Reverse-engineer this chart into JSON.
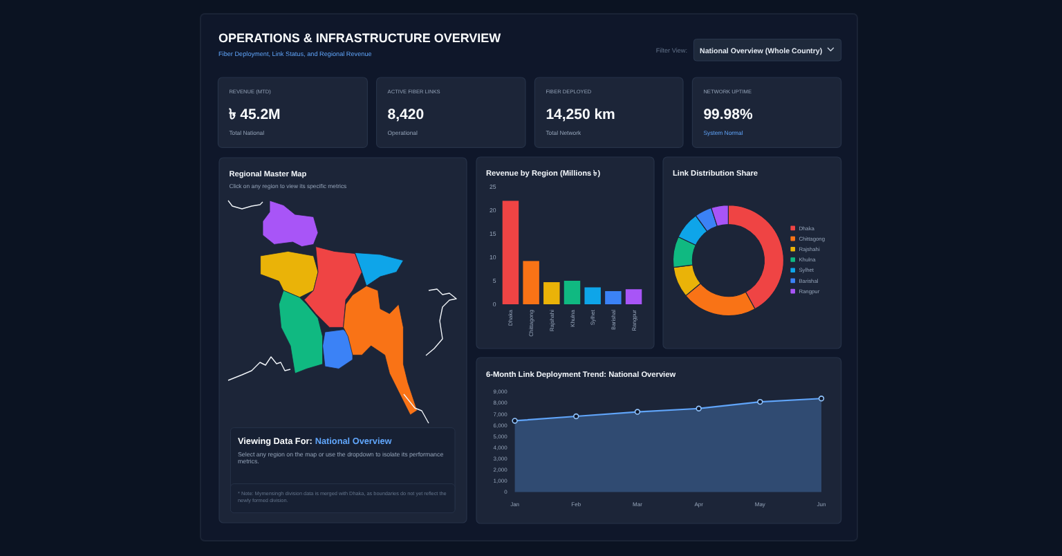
{
  "chart_data": [
    {
      "type": "other",
      "title": "OPERATIONS & INFRASTRUCTURE OVERVIEW",
      "subtitle": "Fiber Deployment, Link Status, and Regional Revenue",
      "annotations": [
        "Filter View:",
        "National Overview (Whole Country)"
      ]
    },
    {
      "type": "other",
      "title": "REVENUE (MTD)",
      "annotations": [
        "৳ 45.2M",
        "Total National"
      ]
    },
    {
      "type": "other",
      "title": "ACTIVE FIBER LINKS",
      "annotations": [
        "8,420",
        "Operational"
      ]
    },
    {
      "type": "other",
      "title": "FIBER DEPLOYED",
      "annotations": [
        "14,250 km",
        "Total Network"
      ]
    },
    {
      "type": "other",
      "title": "NETWORK UPTIME",
      "annotations": [
        "99.98%",
        "System Normal"
      ]
    },
    {
      "type": "other",
      "title": "Regional Master Map",
      "subtitle": "Click on any region to view its specific metrics",
      "annotations": [
        "Viewing Data For:",
        "National Overview",
        "Select any region on the map or use the dropdown to isolate its performance metrics.",
        "* Note: Mymensingh division data is merged with Dhaka, as boundaries do not yet reflect the newly formed division."
      ]
    },
    {
      "type": "bar",
      "title": "Revenue by Region (Millions ৳)",
      "categories": [
        "Dhaka",
        "Chittagong",
        "Rajshahi",
        "Khulna",
        "Sylhet",
        "Barishal",
        "Rangpur"
      ],
      "values": [
        22,
        9.2,
        4.7,
        5,
        3.6,
        2.8,
        3.2
      ],
      "colors": [
        "#ef4444",
        "#f97316",
        "#eab308",
        "#10b981",
        "#0ea5e9",
        "#3b82f6",
        "#a855f7"
      ],
      "ylim": [
        0,
        25
      ],
      "yticks": [
        0,
        5,
        10,
        15,
        20,
        25
      ]
    },
    {
      "type": "donut",
      "title": "Link Distribution Share",
      "categories": [
        "Dhaka",
        "Chittagong",
        "Rajshahi",
        "Khulna",
        "Sylhet",
        "Barishal",
        "Rangpur"
      ],
      "values": [
        42,
        22,
        9,
        9,
        8,
        5,
        5
      ],
      "colors": [
        "#ef4444",
        "#f97316",
        "#eab308",
        "#10b981",
        "#0ea5e9",
        "#3b82f6",
        "#a855f7"
      ],
      "legend": "right"
    },
    {
      "type": "area",
      "title": "6-Month Link Deployment Trend: National Overview",
      "categories": [
        "Jan",
        "Feb",
        "Mar",
        "Apr",
        "May",
        "Jun"
      ],
      "series": [
        {
          "color": "#60a5fa",
          "values": [
            6400,
            6800,
            7200,
            7500,
            8100,
            8400
          ]
        }
      ],
      "ylim": [
        0,
        9000
      ],
      "yticks": [
        {
          "value": 0,
          "label": "0"
        },
        {
          "value": 1000,
          "label": "1,000"
        },
        {
          "value": 2000,
          "label": "2,000"
        },
        {
          "value": 3000,
          "label": "3,000"
        },
        {
          "value": 4000,
          "label": "4,000"
        },
        {
          "value": 5000,
          "label": "5,000"
        },
        {
          "value": 6000,
          "label": "6,000"
        },
        {
          "value": 7000,
          "label": "7,000"
        },
        {
          "value": 8000,
          "label": "8,000"
        },
        {
          "value": 9000,
          "label": "9,000"
        }
      ],
      "marker": "circle"
    }
  ]
}
